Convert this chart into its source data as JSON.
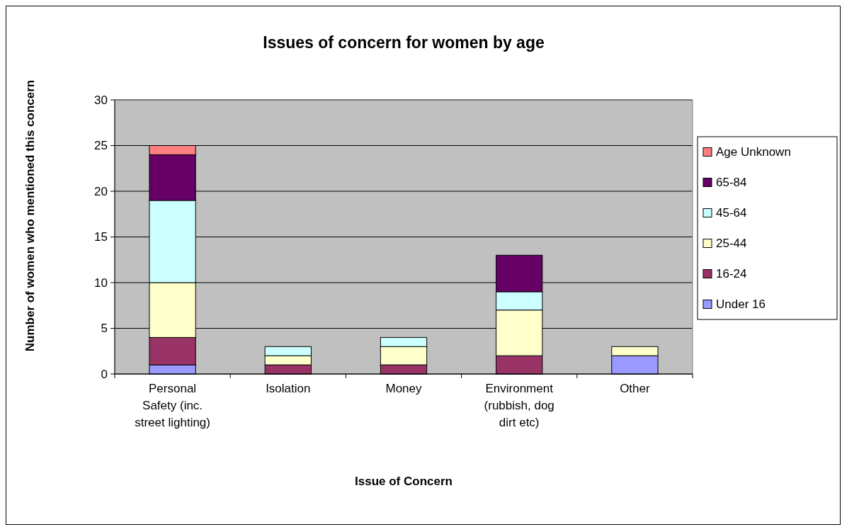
{
  "chart_data": {
    "type": "bar",
    "stacked": true,
    "title": "Issues of concern for women by age",
    "xlabel": "Issue of Concern",
    "ylabel": "Number of women who mentioned this concern",
    "categories": [
      "Personal Safety (inc. street lighting)",
      "Isolation",
      "Money",
      "Environment (rubbish, dog dirt etc)",
      "Other"
    ],
    "series": [
      {
        "name": "Under 16",
        "color": "#9999ff",
        "values": [
          1,
          0,
          0,
          0,
          2
        ]
      },
      {
        "name": "16-24",
        "color": "#993366",
        "values": [
          3,
          1,
          1,
          2,
          0
        ]
      },
      {
        "name": "25-44",
        "color": "#ffffcc",
        "values": [
          6,
          1,
          2,
          5,
          1
        ]
      },
      {
        "name": "45-64",
        "color": "#ccffff",
        "values": [
          9,
          1,
          1,
          2,
          0
        ]
      },
      {
        "name": "65-84",
        "color": "#660066",
        "values": [
          5,
          0,
          0,
          4,
          0
        ]
      },
      {
        "name": "Age Unknown",
        "color": "#ff8080",
        "values": [
          1,
          0,
          0,
          0,
          0
        ]
      }
    ],
    "ylim": [
      0,
      30
    ],
    "yticks": [
      0,
      5,
      10,
      15,
      20,
      25,
      30
    ],
    "grid": "y",
    "legend": "right"
  }
}
